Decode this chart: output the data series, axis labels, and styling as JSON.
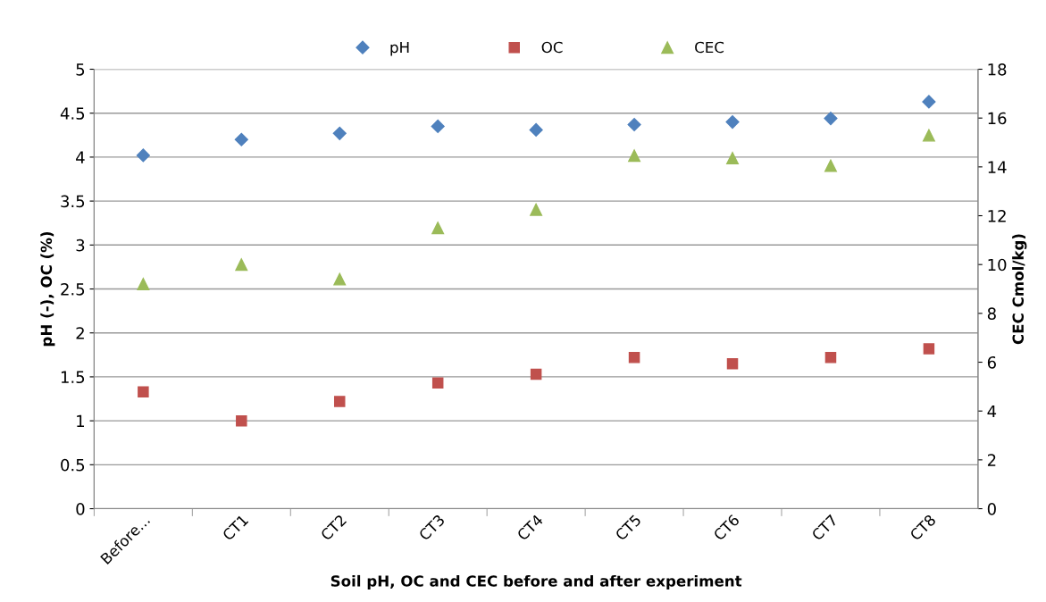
{
  "chart_data": {
    "type": "scatter",
    "xlabel": "Soil pH, OC and CEC before and after experiment",
    "ylabel": "pH (-), OC (%)",
    "y2label": "CEC Cmol/kg)",
    "categories": [
      "Before...",
      "CT1",
      "CT2",
      "CT3",
      "CT4",
      "CT5",
      "CT6",
      "CT7",
      "CT8"
    ],
    "series": [
      {
        "name": "pH",
        "color": "#4f81bd",
        "marker": "diamond",
        "values": [
          4.02,
          4.2,
          4.27,
          4.35,
          4.31,
          4.37,
          4.4,
          4.44,
          4.63
        ]
      },
      {
        "name": "OC",
        "color": "#c0504d",
        "marker": "square",
        "values": [
          1.33,
          1.0,
          1.22,
          1.43,
          1.53,
          1.72,
          1.65,
          1.72,
          1.82
        ]
      },
      {
        "name": "CEC",
        "color": "#9bbb59",
        "marker": "triangle",
        "axis": "y2",
        "values": [
          9.2,
          10.0,
          9.4,
          11.5,
          12.25,
          14.46,
          14.36,
          14.05,
          15.29
        ]
      }
    ],
    "ylim": [
      0,
      5
    ],
    "yticks": [
      0,
      0.5,
      1,
      1.5,
      2,
      2.5,
      3,
      3.5,
      4,
      4.5,
      5
    ],
    "y2lim": [
      0,
      18
    ],
    "y2ticks": [
      0,
      2,
      4,
      6,
      8,
      10,
      12,
      14,
      16,
      18
    ],
    "grid": "y",
    "legend": "top"
  }
}
